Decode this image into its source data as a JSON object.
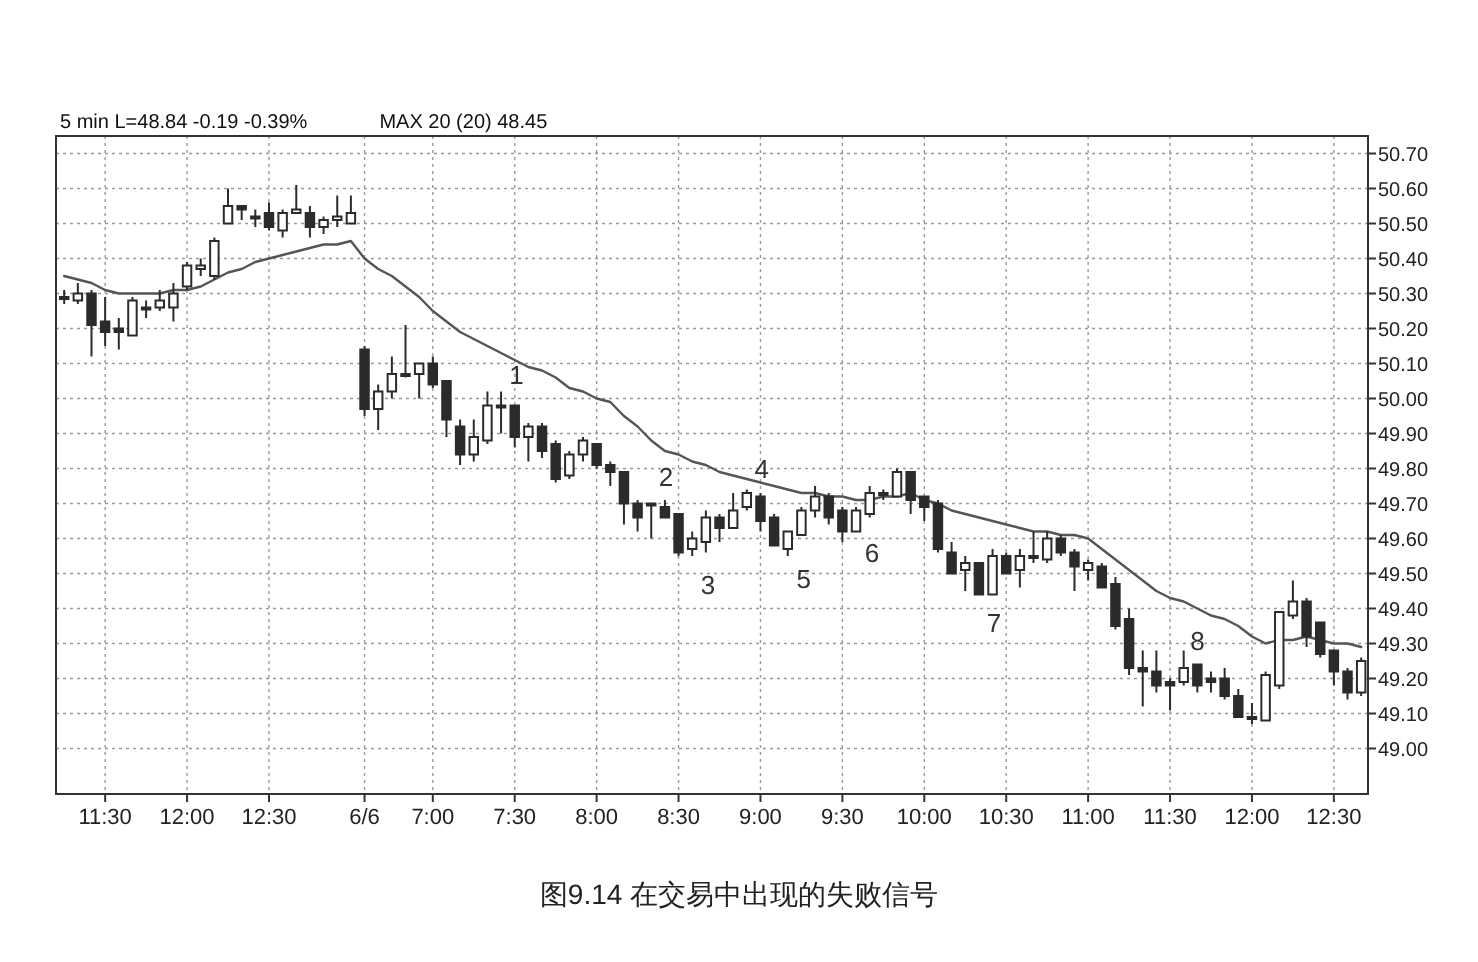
{
  "chart_data": {
    "type": "candlestick",
    "title": "图9.14  在交易中出现的失败信号",
    "annotations": [
      "5 min  L=48.84  -0.19  -0.39%",
      "MAX 20 (20)  48.45",
      "1",
      "2",
      "3",
      "4",
      "5",
      "6",
      "7",
      "8"
    ],
    "color": "#2b2b2b",
    "categories": [
      null,
      null,
      null,
      "11:30",
      null,
      null,
      null,
      null,
      null,
      "12:00",
      null,
      null,
      null,
      null,
      null,
      "12:30",
      null,
      null,
      null,
      null,
      null,
      null,
      "6/6",
      null,
      null,
      null,
      null,
      "7:00",
      null,
      null,
      null,
      null,
      null,
      "7:30",
      null,
      null,
      null,
      null,
      null,
      "8:00",
      null,
      null,
      null,
      null,
      null,
      "8:30",
      null,
      null,
      null,
      null,
      null,
      "9:00",
      null,
      null,
      null,
      null,
      null,
      "9:30",
      null,
      null,
      null,
      null,
      null,
      "10:00",
      null,
      null,
      null,
      null,
      null,
      "10:30",
      null,
      null,
      null,
      null,
      null,
      "11:00",
      null,
      null,
      null,
      null,
      null,
      "11:30",
      null,
      null,
      null,
      null,
      null,
      "12:00",
      null,
      null,
      null,
      null,
      null,
      "12:30",
      null,
      null
    ],
    "ohlc": [
      [
        50.29,
        50.31,
        50.27,
        50.29
      ],
      [
        50.28,
        50.33,
        50.27,
        50.3
      ],
      [
        50.3,
        50.31,
        50.12,
        50.21
      ],
      [
        50.22,
        50.29,
        50.15,
        50.19
      ],
      [
        50.2,
        50.23,
        50.14,
        50.19
      ],
      [
        50.18,
        50.29,
        50.18,
        50.28
      ],
      [
        50.26,
        50.28,
        50.23,
        50.26
      ],
      [
        50.26,
        50.31,
        50.25,
        50.28
      ],
      [
        50.26,
        50.33,
        50.22,
        50.3
      ],
      [
        50.32,
        50.39,
        50.31,
        50.38
      ],
      [
        50.37,
        50.4,
        50.35,
        50.38
      ],
      [
        50.35,
        50.46,
        50.34,
        50.45
      ],
      [
        50.5,
        50.6,
        50.5,
        50.55
      ],
      [
        50.55,
        50.55,
        50.51,
        50.54
      ],
      [
        50.52,
        50.54,
        50.49,
        50.52
      ],
      [
        50.53,
        50.56,
        50.48,
        50.49
      ],
      [
        50.48,
        50.54,
        50.46,
        50.53
      ],
      [
        50.53,
        50.61,
        50.53,
        50.54
      ],
      [
        50.53,
        50.55,
        50.46,
        50.49
      ],
      [
        50.49,
        50.52,
        50.47,
        50.51
      ],
      [
        50.51,
        50.58,
        50.49,
        50.52
      ],
      [
        50.5,
        50.58,
        50.5,
        50.53
      ],
      [
        50.14,
        50.15,
        49.95,
        49.97
      ],
      [
        49.97,
        50.04,
        49.91,
        50.02
      ],
      [
        50.02,
        50.12,
        50.0,
        50.07
      ],
      [
        50.07,
        50.21,
        50.06,
        50.07
      ],
      [
        50.07,
        50.1,
        50.0,
        50.1
      ],
      [
        50.1,
        50.12,
        50.03,
        50.04
      ],
      [
        50.05,
        50.05,
        49.89,
        49.94
      ],
      [
        49.92,
        49.94,
        49.81,
        49.84
      ],
      [
        49.84,
        49.94,
        49.82,
        49.89
      ],
      [
        49.88,
        50.02,
        49.87,
        49.98
      ],
      [
        49.98,
        50.02,
        49.9,
        49.98
      ],
      [
        49.98,
        49.98,
        49.86,
        49.89
      ],
      [
        49.89,
        49.93,
        49.82,
        49.92
      ],
      [
        49.92,
        49.93,
        49.83,
        49.85
      ],
      [
        49.87,
        49.88,
        49.76,
        49.77
      ],
      [
        49.78,
        49.85,
        49.77,
        49.84
      ],
      [
        49.84,
        49.89,
        49.82,
        49.88
      ],
      [
        49.87,
        49.87,
        49.8,
        49.81
      ],
      [
        49.81,
        49.82,
        49.75,
        49.79
      ],
      [
        49.79,
        49.79,
        49.64,
        49.7
      ],
      [
        49.7,
        49.71,
        49.62,
        49.66
      ],
      [
        49.7,
        49.7,
        49.6,
        49.7
      ],
      [
        49.69,
        49.71,
        49.66,
        49.66
      ],
      [
        49.67,
        49.67,
        49.55,
        49.56
      ],
      [
        49.57,
        49.62,
        49.55,
        49.6
      ],
      [
        49.59,
        49.68,
        49.56,
        49.66
      ],
      [
        49.66,
        49.67,
        49.59,
        49.63
      ],
      [
        49.63,
        49.73,
        49.63,
        49.68
      ],
      [
        49.69,
        49.74,
        49.68,
        49.73
      ],
      [
        49.72,
        49.73,
        49.62,
        49.65
      ],
      [
        49.66,
        49.67,
        49.58,
        49.58
      ],
      [
        49.57,
        49.62,
        49.55,
        49.62
      ],
      [
        49.61,
        49.69,
        49.61,
        49.68
      ],
      [
        49.68,
        49.75,
        49.66,
        49.72
      ],
      [
        49.72,
        49.73,
        49.64,
        49.66
      ],
      [
        49.68,
        49.69,
        49.59,
        49.62
      ],
      [
        49.62,
        49.69,
        49.62,
        49.68
      ],
      [
        49.67,
        49.75,
        49.66,
        49.73
      ],
      [
        49.73,
        49.74,
        49.71,
        49.73
      ],
      [
        49.72,
        49.8,
        49.72,
        49.79
      ],
      [
        49.79,
        49.79,
        49.67,
        49.71
      ],
      [
        49.72,
        49.72,
        49.65,
        49.69
      ],
      [
        49.7,
        49.71,
        49.56,
        49.57
      ],
      [
        49.56,
        49.59,
        49.5,
        49.5
      ],
      [
        49.51,
        49.55,
        49.45,
        49.53
      ],
      [
        49.53,
        49.53,
        49.44,
        49.44
      ],
      [
        49.44,
        49.57,
        49.44,
        49.55
      ],
      [
        49.55,
        49.56,
        49.5,
        49.5
      ],
      [
        49.51,
        49.57,
        49.46,
        49.55
      ],
      [
        49.55,
        49.62,
        49.53,
        49.55
      ],
      [
        49.54,
        49.62,
        49.53,
        49.6
      ],
      [
        49.6,
        49.61,
        49.55,
        49.56
      ],
      [
        49.56,
        49.57,
        49.45,
        49.52
      ],
      [
        49.51,
        49.54,
        49.48,
        49.53
      ],
      [
        49.52,
        49.53,
        49.46,
        49.46
      ],
      [
        49.47,
        49.49,
        49.34,
        49.35
      ],
      [
        49.37,
        49.4,
        49.21,
        49.23
      ],
      [
        49.23,
        49.28,
        49.12,
        49.22
      ],
      [
        49.22,
        49.28,
        49.16,
        49.18
      ],
      [
        49.19,
        49.2,
        49.11,
        49.18
      ],
      [
        49.19,
        49.28,
        49.18,
        49.23
      ],
      [
        49.24,
        49.24,
        49.16,
        49.18
      ],
      [
        49.2,
        49.22,
        49.16,
        49.19
      ],
      [
        49.2,
        49.23,
        49.14,
        49.15
      ],
      [
        49.15,
        49.17,
        49.09,
        49.09
      ],
      [
        49.09,
        49.13,
        49.07,
        49.09
      ],
      [
        49.08,
        49.22,
        49.08,
        49.21
      ],
      [
        49.18,
        49.39,
        49.17,
        49.39
      ],
      [
        49.38,
        49.48,
        49.37,
        49.42
      ],
      [
        49.42,
        49.43,
        49.29,
        49.32
      ],
      [
        49.36,
        49.36,
        49.26,
        49.27
      ],
      [
        49.28,
        49.28,
        49.18,
        49.22
      ],
      [
        49.22,
        49.23,
        49.14,
        49.16
      ],
      [
        49.16,
        49.26,
        49.15,
        49.25
      ]
    ],
    "series": [
      {
        "type": "line",
        "color": "#555555",
        "values": [
          50.35,
          50.34,
          50.33,
          50.31,
          50.3,
          50.3,
          50.3,
          50.3,
          50.31,
          50.31,
          50.32,
          50.34,
          50.36,
          50.37,
          50.39,
          50.4,
          50.41,
          50.42,
          50.43,
          50.44,
          50.44,
          50.45,
          50.4,
          50.37,
          50.35,
          50.32,
          50.29,
          50.25,
          50.22,
          50.19,
          50.17,
          50.15,
          50.13,
          50.11,
          50.09,
          50.08,
          50.06,
          50.03,
          50.02,
          50.0,
          49.99,
          49.95,
          49.92,
          49.88,
          49.85,
          49.84,
          49.82,
          49.81,
          49.79,
          49.78,
          49.77,
          49.76,
          49.75,
          49.74,
          49.73,
          49.73,
          49.72,
          49.72,
          49.71,
          49.71,
          49.72,
          49.72,
          49.73,
          49.71,
          49.7,
          49.68,
          49.67,
          49.66,
          49.65,
          49.64,
          49.63,
          49.62,
          49.62,
          49.61,
          49.61,
          49.6,
          49.57,
          49.54,
          49.51,
          49.48,
          49.45,
          49.43,
          49.42,
          49.4,
          49.38,
          49.37,
          49.35,
          49.32,
          49.3,
          49.31,
          49.31,
          49.32,
          49.31,
          49.3,
          49.3,
          49.29
        ]
      }
    ],
    "ylim": [
      48.87,
      50.75
    ],
    "yticks": [
      {
        "value": 49.0,
        "label": "49.00"
      },
      {
        "value": 49.1,
        "label": "49.10"
      },
      {
        "value": 49.2,
        "label": "49.20"
      },
      {
        "value": 49.3,
        "label": "49.30"
      },
      {
        "value": 49.4,
        "label": "49.40"
      },
      {
        "value": 49.5,
        "label": "49.50"
      },
      {
        "value": 49.6,
        "label": "49.60"
      },
      {
        "value": 49.7,
        "label": "49.70"
      },
      {
        "value": 49.8,
        "label": "49.80"
      },
      {
        "value": 49.9,
        "label": "49.90"
      },
      {
        "value": 50.0,
        "label": "50.00"
      },
      {
        "value": 50.1,
        "label": "50.10"
      },
      {
        "value": 50.2,
        "label": "50.20"
      },
      {
        "value": 50.3,
        "label": "50.30"
      },
      {
        "value": 50.4,
        "label": "50.40"
      },
      {
        "value": 50.5,
        "label": "50.50"
      },
      {
        "value": 50.6,
        "label": "50.60"
      },
      {
        "value": 50.7,
        "label": "50.70"
      }
    ],
    "grid": true
  }
}
